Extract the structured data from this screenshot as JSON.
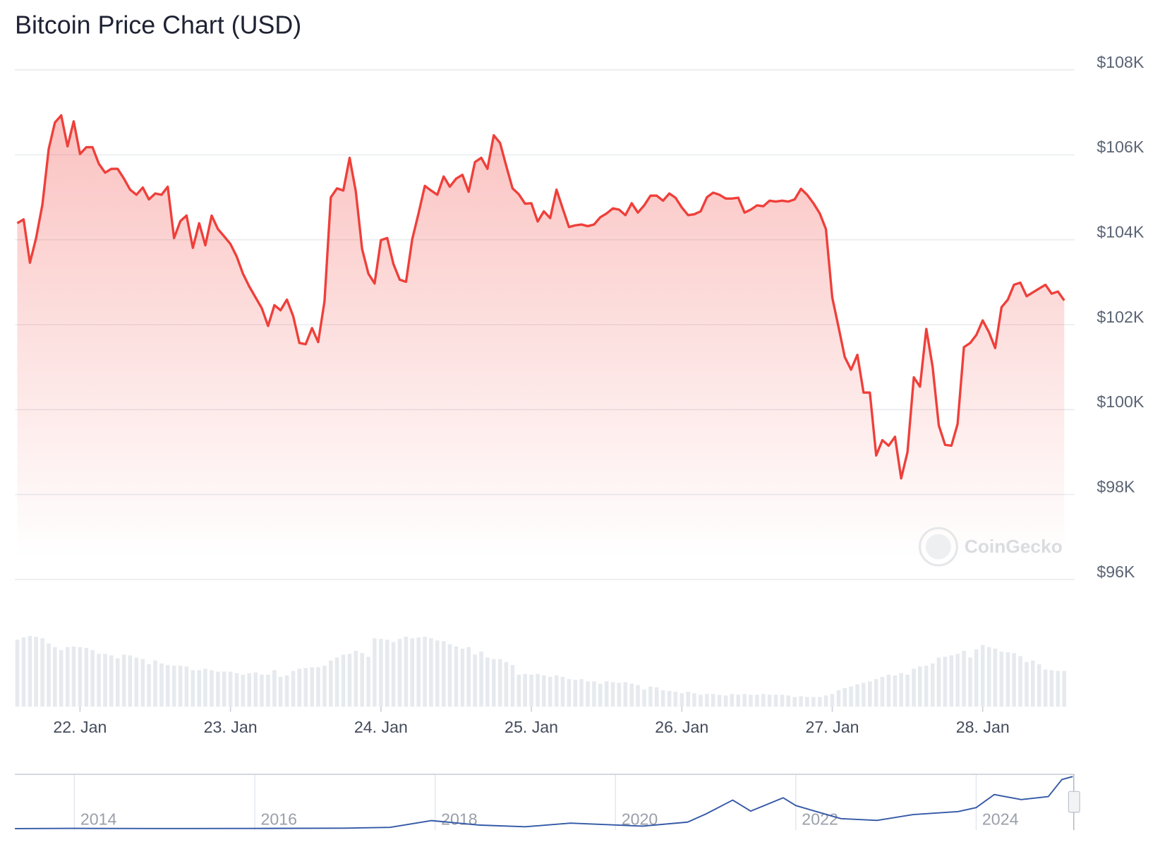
{
  "chart_data": [
    {
      "type": "line",
      "title": "Bitcoin Price Chart (USD)",
      "watermark": "CoinGecko",
      "color": "#ef3f3a",
      "volume_color": "#e6eaee",
      "grid": true,
      "xlim": [
        21.567,
        28.61
      ],
      "xticks": [
        {
          "value": 22,
          "label": "22. Jan"
        },
        {
          "value": 23,
          "label": "23. Jan"
        },
        {
          "value": 24,
          "label": "24. Jan"
        },
        {
          "value": 25,
          "label": "25. Jan"
        },
        {
          "value": 26,
          "label": "26. Jan"
        },
        {
          "value": 27,
          "label": "27. Jan"
        },
        {
          "value": 28,
          "label": "28. Jan"
        }
      ],
      "ylim": [
        96000,
        108000
      ],
      "yticks": [
        {
          "value": 96000,
          "label": "$96K"
        },
        {
          "value": 98000,
          "label": "$98K"
        },
        {
          "value": 100000,
          "label": "$100K"
        },
        {
          "value": 102000,
          "label": "$102K"
        },
        {
          "value": 104000,
          "label": "$104K"
        },
        {
          "value": 106000,
          "label": "$106K"
        },
        {
          "value": 108000,
          "label": "$108K"
        }
      ],
      "x": [
        21.583,
        21.625,
        21.667,
        21.708,
        21.75,
        21.792,
        21.833,
        21.875,
        21.917,
        21.958,
        22,
        22.042,
        22.083,
        22.125,
        22.167,
        22.208,
        22.25,
        22.292,
        22.333,
        22.375,
        22.417,
        22.458,
        22.5,
        22.542,
        22.583,
        22.625,
        22.667,
        22.708,
        22.75,
        22.792,
        22.833,
        22.875,
        22.917,
        22.958,
        23,
        23.042,
        23.083,
        23.125,
        23.167,
        23.208,
        23.25,
        23.292,
        23.333,
        23.375,
        23.417,
        23.458,
        23.5,
        23.542,
        23.583,
        23.625,
        23.667,
        23.708,
        23.75,
        23.792,
        23.833,
        23.875,
        23.917,
        23.958,
        24,
        24.042,
        24.083,
        24.125,
        24.167,
        24.208,
        24.25,
        24.292,
        24.333,
        24.375,
        24.417,
        24.458,
        24.5,
        24.542,
        24.583,
        24.625,
        24.667,
        24.708,
        24.75,
        24.792,
        24.833,
        24.875,
        24.917,
        24.958,
        25,
        25.042,
        25.083,
        25.125,
        25.167,
        25.208,
        25.25,
        25.292,
        25.333,
        25.375,
        25.417,
        25.458,
        25.5,
        25.542,
        25.583,
        25.625,
        25.667,
        25.708,
        25.75,
        25.792,
        25.833,
        25.875,
        25.917,
        25.958,
        26,
        26.042,
        26.083,
        26.125,
        26.167,
        26.208,
        26.25,
        26.292,
        26.333,
        26.375,
        26.417,
        26.458,
        26.5,
        26.542,
        26.583,
        26.625,
        26.667,
        26.708,
        26.75,
        26.792,
        26.833,
        26.875,
        26.917,
        26.958,
        27,
        27.042,
        27.083,
        27.125,
        27.167,
        27.208,
        27.25,
        27.292,
        27.333,
        27.375,
        27.417,
        27.458,
        27.5,
        27.542,
        27.583,
        27.625,
        27.667,
        27.708,
        27.75,
        27.792,
        27.833,
        27.875,
        27.917,
        27.958,
        28,
        28.042,
        28.083,
        28.125,
        28.167,
        28.208,
        28.25,
        28.292,
        28.333,
        28.375,
        28.417,
        28.458,
        28.5,
        28.542
      ],
      "values": [
        104390,
        104480,
        103460,
        104040,
        104830,
        106140,
        106760,
        106930,
        106200,
        106790,
        106020,
        106180,
        106180,
        105790,
        105580,
        105670,
        105670,
        105440,
        105180,
        105060,
        105230,
        104950,
        105090,
        105060,
        105250,
        104040,
        104440,
        104570,
        103810,
        104390,
        103870,
        104570,
        104250,
        104080,
        103900,
        103600,
        103200,
        102900,
        102640,
        102390,
        101970,
        102460,
        102340,
        102590,
        102200,
        101570,
        101540,
        101920,
        101590,
        102550,
        105000,
        105210,
        105160,
        105930,
        105140,
        103780,
        103200,
        102970,
        103990,
        104040,
        103430,
        103060,
        103010,
        104010,
        104620,
        105270,
        105160,
        105060,
        105490,
        105250,
        105440,
        105530,
        105130,
        105830,
        105930,
        105670,
        106460,
        106280,
        105740,
        105210,
        105070,
        104850,
        104860,
        104430,
        104670,
        104510,
        105180,
        104740,
        104300,
        104340,
        104360,
        104320,
        104360,
        104530,
        104620,
        104740,
        104710,
        104580,
        104860,
        104640,
        104810,
        105040,
        105040,
        104920,
        105090,
        104990,
        104760,
        104580,
        104600,
        104670,
        105000,
        105110,
        105060,
        104970,
        104970,
        104990,
        104640,
        104710,
        104810,
        104790,
        104920,
        104900,
        104920,
        104900,
        104950,
        105200,
        105060,
        104860,
        104620,
        104250,
        102640,
        101940,
        101240,
        100940,
        101290,
        100400,
        100400,
        98920,
        99280,
        99150,
        99360,
        98380,
        99000,
        100760,
        100540,
        101900,
        101010,
        99630,
        99170,
        99150,
        99660,
        101470,
        101570,
        101760,
        102100,
        101820,
        101450,
        102410,
        102590,
        102940,
        102990,
        102670,
        102760,
        102850,
        102940,
        102730,
        102780,
        102570
      ],
      "volume": [
        90,
        93,
        95,
        94,
        92,
        85,
        80,
        76,
        80,
        81,
        80,
        79,
        76,
        71,
        71,
        69,
        65,
        70,
        69,
        66,
        64,
        57,
        62,
        58,
        56,
        55,
        55,
        54,
        49,
        49,
        51,
        49,
        47,
        47,
        47,
        45,
        43,
        45,
        46,
        43,
        43,
        49,
        40,
        42,
        48,
        51,
        52,
        53,
        53,
        55,
        62,
        66,
        70,
        71,
        75,
        72,
        67,
        92,
        91,
        90,
        87,
        91,
        94,
        92,
        93,
        94,
        92,
        89,
        88,
        84,
        81,
        78,
        80,
        70,
        74,
        66,
        64,
        64,
        60,
        56,
        43,
        44,
        43,
        44,
        42,
        40,
        42,
        40,
        37,
        36,
        37,
        34,
        34,
        31,
        34,
        33,
        32,
        33,
        31,
        29,
        23,
        27,
        26,
        22,
        21,
        20,
        18,
        20,
        18,
        16,
        17,
        17,
        16,
        15,
        17,
        16,
        17,
        16,
        16,
        17,
        16,
        16,
        16,
        15,
        13,
        14,
        13,
        13,
        13,
        15,
        17,
        22,
        25,
        27,
        30,
        32,
        34,
        37,
        40,
        43,
        42,
        45,
        43,
        51,
        54,
        55,
        58,
        66,
        67,
        69,
        71,
        75,
        66,
        77,
        83,
        80,
        78,
        74,
        73,
        72,
        68,
        60,
        62,
        57,
        50,
        49,
        48,
        48
      ]
    },
    {
      "type": "line",
      "color": "#3358a6",
      "grid": true,
      "xlim": [
        2013.34,
        2025.09
      ],
      "xticks": [
        2014,
        2016,
        2018,
        2020,
        2022,
        2024
      ],
      "x": [
        2013.34,
        2014,
        2015,
        2016,
        2017,
        2017.5,
        2017.96,
        2018.5,
        2019,
        2019.5,
        2020,
        2020.3,
        2020.8,
        2021,
        2021.3,
        2021.5,
        2021.86,
        2022,
        2022.5,
        2022.9,
        2023.3,
        2023.8,
        2024,
        2024.2,
        2024.5,
        2024.8,
        2024.95,
        2025.07
      ],
      "values": [
        100,
        500,
        250,
        400,
        1000,
        2500,
        16000,
        7000,
        3700,
        11000,
        7200,
        5000,
        13000,
        29000,
        57000,
        35000,
        61600,
        46000,
        20000,
        16500,
        28000,
        34000,
        42000,
        68000,
        58000,
        64000,
        98000,
        104000
      ]
    }
  ]
}
